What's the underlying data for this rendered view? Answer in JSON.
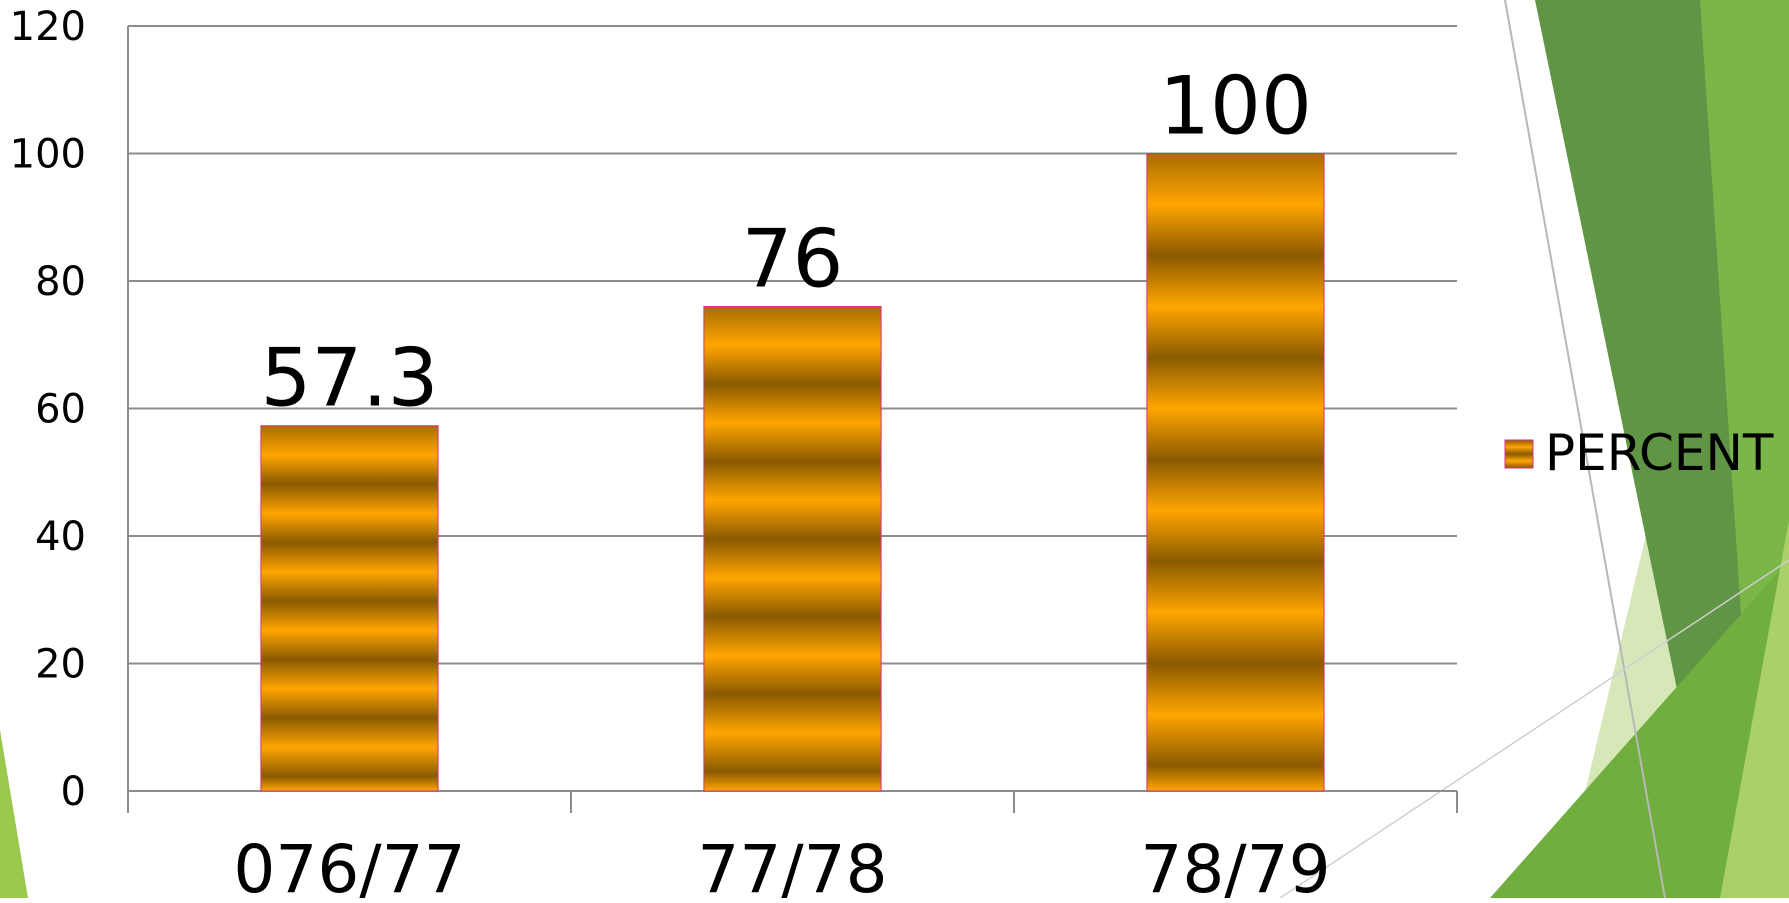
{
  "chart_data": {
    "type": "bar",
    "categories": [
      "076/77",
      "77/78",
      "78/79"
    ],
    "series": [
      {
        "name": "PERCENT",
        "values": [
          57.3,
          76,
          100
        ]
      }
    ],
    "data_labels": [
      "57.3",
      "76",
      "100"
    ],
    "y_ticks": [
      "0",
      "20",
      "40",
      "60",
      "80",
      "100",
      "120"
    ],
    "ylim": [
      0,
      120
    ],
    "y_tick_step": 20,
    "title": "",
    "xlabel": "",
    "ylabel": "",
    "grid": true,
    "legend": {
      "position": "right",
      "label": "PERCENT"
    },
    "colors": {
      "bar_dark": "#8a5a00",
      "bar_light": "#ffa500",
      "grid": "#8c8c8c",
      "text": "#000000",
      "decor_green_dark": "#5a8f3c",
      "decor_green": "#7ab648",
      "decor_green_light": "#c8e0a0"
    }
  }
}
